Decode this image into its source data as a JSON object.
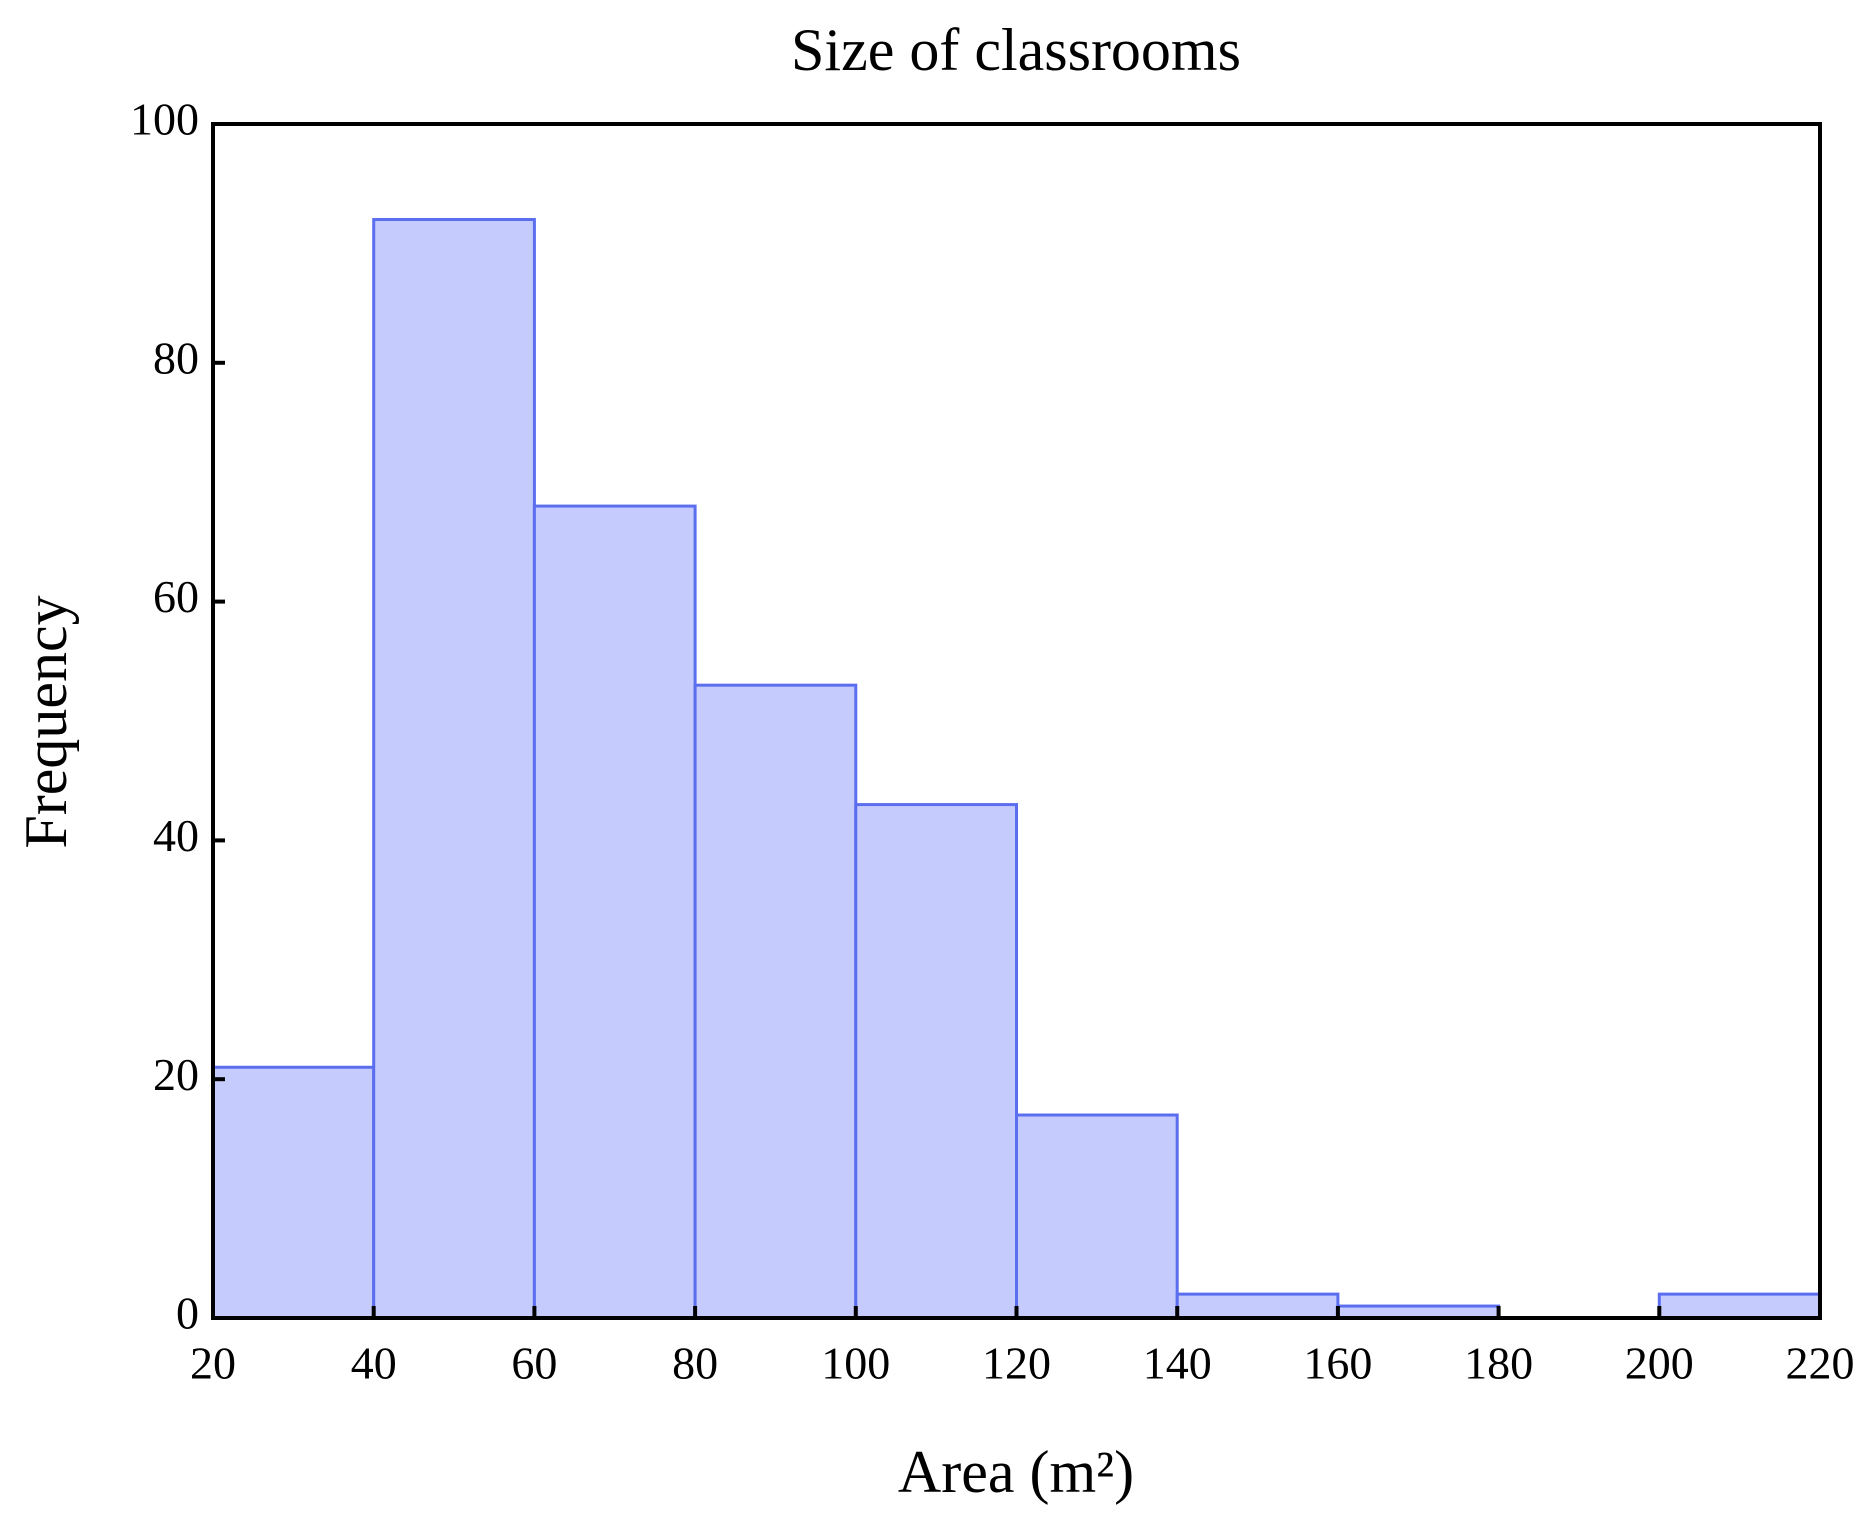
{
  "chart_data": {
    "type": "histogram",
    "title": "Size of classrooms",
    "x_label": "Area (m²)",
    "y_label": "Frequency",
    "bins": [
      20,
      40,
      60,
      80,
      100,
      120,
      140,
      160,
      180,
      200,
      220
    ],
    "values": [
      21,
      92,
      68,
      53,
      43,
      17,
      2,
      1,
      0,
      2
    ],
    "color": "#c5cbfc",
    "edge_color": "#5b6ef0",
    "xlim": [
      20,
      220
    ],
    "xticks": [
      20,
      40,
      60,
      80,
      100,
      120,
      140,
      160,
      180,
      200,
      220
    ],
    "ylim": [
      0,
      100
    ],
    "yticks": [
      0,
      20,
      40,
      60,
      80,
      100
    ]
  }
}
